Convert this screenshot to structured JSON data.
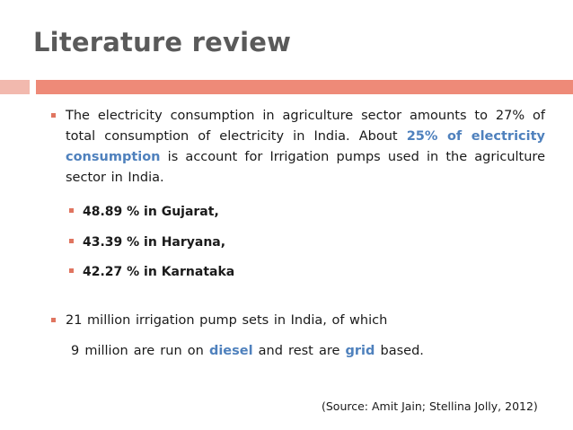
{
  "slide": {
    "title": "Literature review"
  },
  "body": {
    "para1": {
      "t1": "The electricity consumption in agriculture sector amounts to 27% of total consumption of electricity in India. About ",
      "h1": "25% of electricity consumption",
      "t2": " is account for Irrigation pumps used in the agriculture sector in India."
    },
    "sub_items": [
      "48.89 % in Gujarat,",
      "43.39 % in Haryana,",
      "42.27 % in Karnataka"
    ],
    "para2": "21 million irrigation pump sets in India, of which",
    "para3": {
      "t1": "9 million are run on ",
      "h1": "diesel",
      "t2": " and rest are ",
      "h2": "grid",
      "t3": " based."
    },
    "source": "(Source: Amit Jain; Stellina Jolly, 2012)"
  },
  "colors": {
    "title": "#5a5a5a",
    "highlight": "#4f81bd",
    "bullet": "#e07560",
    "bar_light": "#f2b9ae",
    "bar_dark": "#ee8a78"
  }
}
